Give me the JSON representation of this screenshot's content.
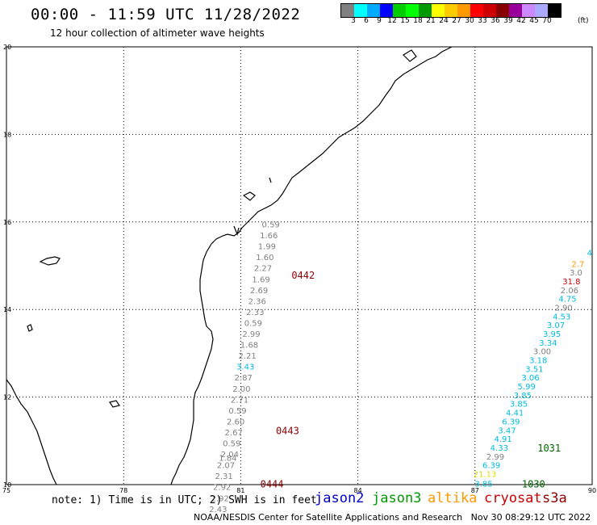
{
  "header": {
    "title": "00:00 - 11:59 UTC 11/28/2022",
    "subtitle": "12 hour collection of altimeter wave heights"
  },
  "colorbar": {
    "colors": [
      "#808080",
      "#00ffff",
      "#00aaff",
      "#0000ff",
      "#00cc00",
      "#00ff00",
      "#009900",
      "#ffff00",
      "#ffcc00",
      "#ff9900",
      "#ff0000",
      "#cc0000",
      "#880000",
      "#990099",
      "#cc88ff",
      "#aaaaff",
      "#000000"
    ],
    "labels": [
      "3",
      "6",
      "9",
      "12",
      "15",
      "18",
      "21",
      "24",
      "27",
      "30",
      "33",
      "36",
      "39",
      "42",
      "45",
      "70"
    ],
    "unit": "(ft)"
  },
  "axes": {
    "lon_labels": [
      "75",
      "78",
      "81",
      "84",
      "87",
      "90"
    ],
    "lat_labels": [
      "20",
      "18",
      "16",
      "14",
      "12",
      "10"
    ],
    "lon_range": [
      75,
      90
    ],
    "lat_range": [
      10,
      20
    ]
  },
  "chart_data": {
    "type": "scatter",
    "passes": [
      {
        "label": "0442",
        "lon": 82.3,
        "lat": 14.8,
        "color": "#8b0000"
      },
      {
        "label": "0443",
        "lon": 81.9,
        "lat": 11.25,
        "color": "#8b0000"
      },
      {
        "label": "0444",
        "lon": 81.5,
        "lat": 10.03,
        "color": "#8b0000"
      },
      {
        "label": "1031",
        "lon": 88.6,
        "lat": 10.85,
        "color": "#006600"
      },
      {
        "label": "1030",
        "lon": 88.2,
        "lat": 10.03,
        "color": "#006600"
      }
    ],
    "track_a": [
      {
        "lon": 82.0,
        "lat": 15.95,
        "v": "0.59",
        "color": "#808080"
      },
      {
        "lon": 81.95,
        "lat": 15.7,
        "v": "1.66",
        "color": "#808080"
      },
      {
        "lon": 81.9,
        "lat": 15.45,
        "v": "1.99",
        "color": "#808080"
      },
      {
        "lon": 81.85,
        "lat": 15.2,
        "v": "1.60",
        "color": "#808080"
      },
      {
        "lon": 81.8,
        "lat": 14.95,
        "v": "2.27",
        "color": "#808080"
      },
      {
        "lon": 81.75,
        "lat": 14.7,
        "v": "1.69",
        "color": "#808080"
      },
      {
        "lon": 81.7,
        "lat": 14.45,
        "v": "2.69",
        "color": "#808080"
      },
      {
        "lon": 81.65,
        "lat": 14.2,
        "v": "2.36",
        "color": "#808080"
      },
      {
        "lon": 81.6,
        "lat": 13.95,
        "v": "2.33",
        "color": "#808080"
      },
      {
        "lon": 81.55,
        "lat": 13.7,
        "v": "0.59",
        "color": "#808080"
      },
      {
        "lon": 81.5,
        "lat": 13.45,
        "v": "2.99",
        "color": "#808080"
      },
      {
        "lon": 81.45,
        "lat": 13.2,
        "v": "1.68",
        "color": "#808080"
      },
      {
        "lon": 81.4,
        "lat": 12.95,
        "v": "2.21",
        "color": "#808080"
      },
      {
        "lon": 81.35,
        "lat": 12.7,
        "v": "3.43",
        "color": "#00bbdd"
      },
      {
        "lon": 81.3,
        "lat": 12.45,
        "v": "2.87",
        "color": "#808080"
      },
      {
        "lon": 81.25,
        "lat": 12.2,
        "v": "2.00",
        "color": "#808080"
      },
      {
        "lon": 81.2,
        "lat": 11.95,
        "v": "2.71",
        "color": "#808080"
      },
      {
        "lon": 81.15,
        "lat": 11.7,
        "v": "0.59",
        "color": "#808080"
      },
      {
        "lon": 81.1,
        "lat": 11.45,
        "v": "2.60",
        "color": "#808080"
      },
      {
        "lon": 81.05,
        "lat": 11.2,
        "v": "2.67",
        "color": "#808080"
      },
      {
        "lon": 81.0,
        "lat": 10.95,
        "v": "0.59",
        "color": "#808080"
      },
      {
        "lon": 80.95,
        "lat": 10.7,
        "v": "2.04",
        "color": "#808080"
      },
      {
        "lon": 80.9,
        "lat": 10.62,
        "v": "1.84",
        "color": "#808080"
      },
      {
        "lon": 80.85,
        "lat": 10.45,
        "v": "2.07",
        "color": "#808080"
      },
      {
        "lon": 80.8,
        "lat": 10.2,
        "v": "2.31",
        "color": "#808080"
      },
      {
        "lon": 80.75,
        "lat": 9.95,
        "v": "2.92",
        "color": "#808080"
      },
      {
        "lon": 80.7,
        "lat": 9.7,
        "v": "2.92",
        "color": "#808080"
      },
      {
        "lon": 80.65,
        "lat": 9.45,
        "v": "2.43",
        "color": "#808080"
      }
    ],
    "track_b": [
      {
        "lon": 90.0,
        "lat": 15.3,
        "v": "4",
        "color": "#00bbdd"
      },
      {
        "lon": 89.8,
        "lat": 15.05,
        "v": "2.7",
        "color": "#ff9900"
      },
      {
        "lon": 89.75,
        "lat": 14.85,
        "v": "3.0",
        "color": "#808080"
      },
      {
        "lon": 89.7,
        "lat": 14.65,
        "v": "31.8",
        "color": "#cc0000"
      },
      {
        "lon": 89.65,
        "lat": 14.45,
        "v": "2.06",
        "color": "#808080"
      },
      {
        "lon": 89.6,
        "lat": 14.25,
        "v": "4.75",
        "color": "#00bbdd"
      },
      {
        "lon": 89.5,
        "lat": 14.05,
        "v": "2.90",
        "color": "#808080"
      },
      {
        "lon": 89.45,
        "lat": 13.85,
        "v": "4.53",
        "color": "#00bbdd"
      },
      {
        "lon": 89.3,
        "lat": 13.65,
        "v": "3.07",
        "color": "#00bbdd"
      },
      {
        "lon": 89.2,
        "lat": 13.45,
        "v": "3.95",
        "color": "#00bbdd"
      },
      {
        "lon": 89.1,
        "lat": 13.25,
        "v": "3.34",
        "color": "#00bbdd"
      },
      {
        "lon": 88.95,
        "lat": 13.05,
        "v": "3.00",
        "color": "#808080"
      },
      {
        "lon": 88.85,
        "lat": 12.85,
        "v": "3.18",
        "color": "#00bbdd"
      },
      {
        "lon": 88.75,
        "lat": 12.65,
        "v": "3.51",
        "color": "#00bbdd"
      },
      {
        "lon": 88.65,
        "lat": 12.45,
        "v": "3.06",
        "color": "#00bbdd"
      },
      {
        "lon": 88.55,
        "lat": 12.25,
        "v": "5.99",
        "color": "#00bbdd"
      },
      {
        "lon": 88.45,
        "lat": 12.05,
        "v": "3.85",
        "color": "#00bbdd"
      },
      {
        "lon": 88.35,
        "lat": 11.85,
        "v": "3.85",
        "color": "#00bbdd"
      },
      {
        "lon": 88.25,
        "lat": 11.65,
        "v": "4.41",
        "color": "#00bbdd"
      },
      {
        "lon": 88.15,
        "lat": 11.45,
        "v": "6.39",
        "color": "#00bbdd"
      },
      {
        "lon": 88.05,
        "lat": 11.25,
        "v": "3.47",
        "color": "#00bbdd"
      },
      {
        "lon": 87.95,
        "lat": 11.05,
        "v": "4.91",
        "color": "#00bbdd"
      },
      {
        "lon": 87.85,
        "lat": 10.85,
        "v": "4.33",
        "color": "#00bbdd"
      },
      {
        "lon": 87.75,
        "lat": 10.65,
        "v": "2.99",
        "color": "#808080"
      },
      {
        "lon": 87.65,
        "lat": 10.45,
        "v": "6.39",
        "color": "#00bbdd"
      },
      {
        "lon": 87.55,
        "lat": 10.25,
        "v": "21.13",
        "color": "#dddd00"
      },
      {
        "lon": 87.45,
        "lat": 10.03,
        "v": "3.85",
        "color": "#00bbdd"
      }
    ]
  },
  "footer": {
    "note": "note: 1) Time is in UTC; 2) SWH is in feet",
    "legend": [
      {
        "label": "jason2",
        "color": "#0000cc"
      },
      {
        "label": "jason3",
        "color": "#009900"
      },
      {
        "label": "altika",
        "color": "#ff9900"
      },
      {
        "label": "cryosat",
        "color": "#cc0000"
      },
      {
        "label": "s3a",
        "color": "#8b0000"
      }
    ],
    "credit": "NOAA/NESDIS Center for Satellite Applications and Research   Nov 30 08:29:12 UTC 2022"
  }
}
